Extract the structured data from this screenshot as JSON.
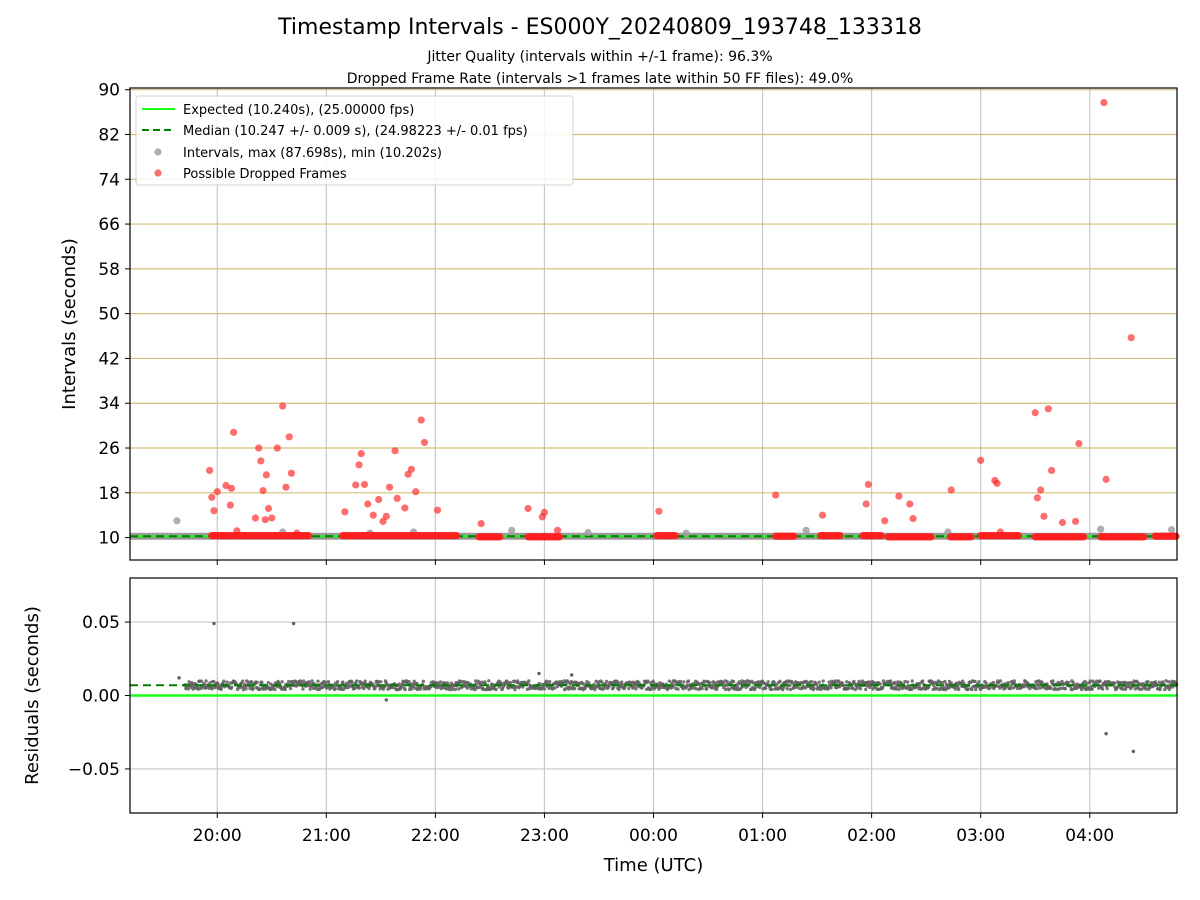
{
  "title": "Timestamp Intervals - ES000Y_20240809_193748_133318",
  "subtitle1": "Jitter Quality (intervals within +/-1 frame): 96.3%",
  "subtitle2": "Dropped Frame Rate (intervals >1 frames late within 50 FF files): 49.0%",
  "colors": {
    "expected": "#1aff1a",
    "median": "#008000",
    "intervals": "#a0a0a0",
    "dropped": "#ff2020",
    "hgrid": "#d4bf7a",
    "vgrid": "#c8c8c8",
    "residual": "#606060"
  },
  "chart_data": [
    {
      "type": "scatter",
      "ylabel": "Intervals (seconds)",
      "xlabel": "",
      "x_ticks": [
        "20:00",
        "21:00",
        "22:00",
        "23:00",
        "00:00",
        "01:00",
        "02:00",
        "03:00",
        "04:00"
      ],
      "x_range_hours": [
        19.2,
        28.8
      ],
      "y_ticks": [
        10,
        18,
        26,
        34,
        42,
        50,
        58,
        66,
        74,
        82,
        90
      ],
      "ylim": [
        6,
        90.3
      ],
      "grid": true,
      "legend_position": "top-left",
      "legend": [
        "Expected (10.240s), (25.00000 fps)",
        "Median (10.247 +/- 0.009 s), (24.98223 +/- 0.01 fps)",
        "Intervals, max (87.698s), min (10.202s)",
        "Possible Dropped Frames"
      ],
      "series": [
        {
          "name": "Expected (10.240s), (25.00000 fps)",
          "kind": "hline",
          "y": 10.24
        },
        {
          "name": "Median (10.247 +/- 0.009 s), (24.98223 +/- 0.01 fps)",
          "kind": "hline-dashed",
          "y": 10.247
        },
        {
          "name": "Intervals, max (87.698s), min (10.202s)",
          "kind": "points",
          "x_hours": [
            19.63,
            20.6,
            21.4,
            21.8,
            22.7,
            23.4,
            24.3,
            25.4,
            26.7,
            28.1,
            28.75
          ],
          "y": [
            13.0,
            11.0,
            10.8,
            11.0,
            11.3,
            10.9,
            10.8,
            11.3,
            11.0,
            11.5,
            11.4
          ]
        },
        {
          "name": "Possible Dropped Frames",
          "kind": "points",
          "x_hours": [
            19.93,
            19.95,
            19.97,
            20.0,
            20.08,
            20.12,
            20.13,
            20.15,
            20.18,
            20.35,
            20.38,
            20.4,
            20.42,
            20.44,
            20.45,
            20.47,
            20.5,
            20.55,
            20.6,
            20.63,
            20.66,
            20.68,
            20.73,
            21.17,
            21.27,
            21.3,
            21.32,
            21.35,
            21.38,
            21.43,
            21.48,
            21.52,
            21.55,
            21.58,
            21.63,
            21.65,
            21.72,
            21.75,
            21.78,
            21.82,
            21.87,
            21.9,
            22.02,
            22.42,
            22.85,
            22.98,
            23.0,
            23.12,
            24.05,
            25.12,
            25.55,
            25.95,
            25.97,
            26.12,
            26.25,
            26.35,
            26.38,
            26.73,
            27.0,
            27.13,
            27.15,
            27.18,
            27.5,
            27.52,
            27.55,
            27.58,
            27.62,
            27.65,
            27.75,
            27.87,
            27.9,
            28.15,
            28.38
          ],
          "y": [
            22.0,
            17.2,
            14.8,
            18.2,
            19.3,
            15.8,
            18.8,
            28.8,
            11.2,
            13.5,
            26.0,
            23.7,
            18.4,
            13.2,
            21.2,
            15.2,
            13.5,
            26.0,
            33.5,
            19.0,
            28.0,
            21.5,
            10.8,
            14.6,
            19.4,
            23.0,
            25.0,
            19.5,
            16.0,
            14.0,
            16.8,
            12.9,
            13.8,
            19.0,
            25.5,
            17.0,
            15.3,
            21.3,
            22.2,
            18.2,
            31.0,
            27.0,
            14.9,
            12.5,
            15.2,
            13.7,
            14.5,
            11.3,
            14.7,
            17.6,
            14.0,
            16.0,
            19.5,
            13.0,
            17.4,
            16.0,
            13.4,
            18.5,
            23.8,
            20.2,
            19.7,
            11.0,
            32.3,
            17.1,
            18.5,
            13.8,
            33.0,
            22.0,
            12.7,
            12.9,
            26.8,
            20.4,
            45.7
          ]
        }
      ]
    },
    {
      "type": "scatter",
      "ylabel": "Residuals (seconds)",
      "xlabel": "Time (UTC)",
      "x_ticks": [
        "20:00",
        "21:00",
        "22:00",
        "23:00",
        "00:00",
        "01:00",
        "02:00",
        "03:00",
        "04:00"
      ],
      "x_range_hours": [
        19.2,
        28.8
      ],
      "y_ticks": [
        "0.05",
        "0.00",
        "−0.05"
      ],
      "ylim": [
        -0.08,
        0.08
      ],
      "grid": true,
      "series": [
        {
          "name": "",
          "kind": "hline",
          "y": 0.0
        },
        {
          "name": "",
          "kind": "hline-dashed",
          "y": 0.007
        },
        {
          "name": "",
          "kind": "residual-band",
          "x_range_hours": [
            19.7,
            28.8
          ],
          "mean": 0.007,
          "spread": 0.003
        },
        {
          "name": "",
          "kind": "points",
          "x_hours": [
            19.97,
            20.7,
            21.55,
            28.15,
            28.4,
            19.65,
            22.95,
            23.25
          ],
          "y": [
            0.049,
            0.049,
            -0.003,
            -0.026,
            -0.038,
            0.012,
            0.015,
            0.014
          ]
        }
      ]
    }
  ]
}
